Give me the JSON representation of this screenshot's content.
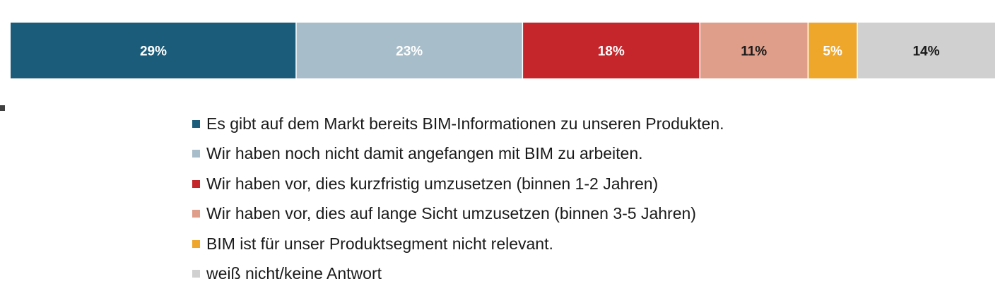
{
  "chart_data": {
    "type": "bar",
    "orientation": "horizontal-stacked-100",
    "series": [
      {
        "name": "Es gibt auf dem Markt bereits BIM-Informationen zu unseren Produkten.",
        "value": 29,
        "label": "29%",
        "color": "#1a5c7a",
        "label_color": "#ffffff"
      },
      {
        "name": "Wir haben noch nicht damit angefangen mit BIM zu arbeiten.",
        "value": 23,
        "label": "23%",
        "color": "#a7bdc9",
        "label_color": "#ffffff"
      },
      {
        "name": "Wir haben vor, dies kurzfristig umzusetzen (binnen 1-2 Jahren)",
        "value": 18,
        "label": "18%",
        "color": "#c4262b",
        "label_color": "#ffffff"
      },
      {
        "name": "Wir haben vor, dies auf lange Sicht umzusetzen (binnen 3-5 Jahren)",
        "value": 11,
        "label": "11%",
        "color": "#df9e8a",
        "label_color": "#1a1a1a"
      },
      {
        "name": "BIM ist für unser Produktsegment nicht relevant.",
        "value": 5,
        "label": "5%",
        "color": "#eea62b",
        "label_color": "#ffffff"
      },
      {
        "name": "weiß nicht/keine Antwort",
        "value": 14,
        "label": "14%",
        "color": "#d0d0d0",
        "label_color": "#1a1a1a"
      }
    ],
    "legend_position": "bottom",
    "grid": false
  }
}
